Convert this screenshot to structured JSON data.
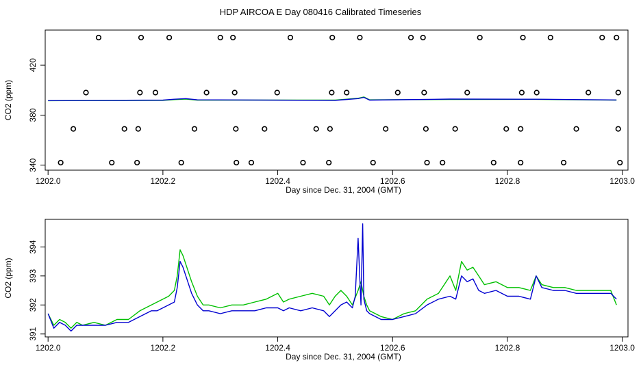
{
  "title": "HDP AIRCOA E  Day 080416  Calibrated Timeseries",
  "colors": {
    "series_a": "#00c000",
    "series_b": "#0000d0",
    "markers": "#000000",
    "frame": "#000000"
  },
  "chart_data": [
    {
      "type": "scatter+line",
      "xlabel": "Day since Dec. 31, 2004 (GMT)",
      "ylabel": "CO2 (ppm)",
      "xlim": [
        1201.995,
        1203.01
      ],
      "ylim": [
        336,
        448
      ],
      "xticks": [
        1202.0,
        1202.2,
        1202.4,
        1202.6,
        1202.8,
        1203.0
      ],
      "xtick_labels": [
        "1202.0",
        "1202.2",
        "1202.4",
        "1202.6",
        "1202.8",
        "1203.0"
      ],
      "yticks": [
        340,
        380,
        420
      ],
      "ytick_labels": [
        "340",
        "380",
        "420"
      ],
      "grid": false,
      "markers": [
        {
          "x": 1202.088,
          "y": 442
        },
        {
          "x": 1202.162,
          "y": 442
        },
        {
          "x": 1202.211,
          "y": 442
        },
        {
          "x": 1202.3,
          "y": 442
        },
        {
          "x": 1202.322,
          "y": 442
        },
        {
          "x": 1202.422,
          "y": 442
        },
        {
          "x": 1202.495,
          "y": 442
        },
        {
          "x": 1202.543,
          "y": 442
        },
        {
          "x": 1202.632,
          "y": 442
        },
        {
          "x": 1202.653,
          "y": 442
        },
        {
          "x": 1202.752,
          "y": 442
        },
        {
          "x": 1202.827,
          "y": 442
        },
        {
          "x": 1202.875,
          "y": 442
        },
        {
          "x": 1202.965,
          "y": 442
        },
        {
          "x": 1202.99,
          "y": 442
        },
        {
          "x": 1202.066,
          "y": 398
        },
        {
          "x": 1202.16,
          "y": 398
        },
        {
          "x": 1202.187,
          "y": 398
        },
        {
          "x": 1202.276,
          "y": 398
        },
        {
          "x": 1202.325,
          "y": 398
        },
        {
          "x": 1202.399,
          "y": 398
        },
        {
          "x": 1202.494,
          "y": 398
        },
        {
          "x": 1202.52,
          "y": 398
        },
        {
          "x": 1202.609,
          "y": 398
        },
        {
          "x": 1202.655,
          "y": 398
        },
        {
          "x": 1202.73,
          "y": 398
        },
        {
          "x": 1202.825,
          "y": 398
        },
        {
          "x": 1202.851,
          "y": 398
        },
        {
          "x": 1202.941,
          "y": 398
        },
        {
          "x": 1202.993,
          "y": 398
        },
        {
          "x": 1202.044,
          "y": 369
        },
        {
          "x": 1202.133,
          "y": 369
        },
        {
          "x": 1202.157,
          "y": 369
        },
        {
          "x": 1202.255,
          "y": 369
        },
        {
          "x": 1202.327,
          "y": 369
        },
        {
          "x": 1202.377,
          "y": 369
        },
        {
          "x": 1202.467,
          "y": 369
        },
        {
          "x": 1202.491,
          "y": 369
        },
        {
          "x": 1202.588,
          "y": 369
        },
        {
          "x": 1202.658,
          "y": 369
        },
        {
          "x": 1202.709,
          "y": 369
        },
        {
          "x": 1202.798,
          "y": 369
        },
        {
          "x": 1202.823,
          "y": 369
        },
        {
          "x": 1202.92,
          "y": 369
        },
        {
          "x": 1202.993,
          "y": 369
        },
        {
          "x": 1202.022,
          "y": 342
        },
        {
          "x": 1202.111,
          "y": 342
        },
        {
          "x": 1202.155,
          "y": 342
        },
        {
          "x": 1202.232,
          "y": 342
        },
        {
          "x": 1202.328,
          "y": 342
        },
        {
          "x": 1202.354,
          "y": 342
        },
        {
          "x": 1202.444,
          "y": 342
        },
        {
          "x": 1202.489,
          "y": 342
        },
        {
          "x": 1202.566,
          "y": 342
        },
        {
          "x": 1202.66,
          "y": 342
        },
        {
          "x": 1202.687,
          "y": 342
        },
        {
          "x": 1202.776,
          "y": 342
        },
        {
          "x": 1202.823,
          "y": 342
        },
        {
          "x": 1202.898,
          "y": 342
        },
        {
          "x": 1202.996,
          "y": 342
        }
      ],
      "series": [
        {
          "x": [
            1202.0,
            1202.2,
            1202.22,
            1202.24,
            1202.26,
            1202.5,
            1202.54,
            1202.55,
            1202.56,
            1202.7,
            1202.85,
            1202.99
          ],
          "y": [
            391.5,
            391.8,
            392.4,
            392.8,
            392.0,
            392.0,
            393.5,
            394.5,
            392.2,
            392.5,
            392.6,
            392.0
          ]
        },
        {
          "x": [
            1202.0,
            1202.2,
            1202.22,
            1202.24,
            1202.26,
            1202.5,
            1202.54,
            1202.55,
            1202.56,
            1202.7,
            1202.85,
            1202.99
          ],
          "y": [
            391.6,
            392.0,
            392.7,
            393.2,
            392.2,
            391.8,
            393.2,
            394.2,
            392.0,
            392.8,
            392.7,
            392.1
          ]
        }
      ]
    },
    {
      "type": "line",
      "xlabel": "Day since Dec. 31, 2004 (GMT)",
      "ylabel": "CO2 (ppm)",
      "xlim": [
        1201.995,
        1203.01
      ],
      "ylim": [
        390.9,
        394.95
      ],
      "xticks": [
        1202.0,
        1202.2,
        1202.4,
        1202.6,
        1202.8,
        1203.0
      ],
      "xtick_labels": [
        "1202.0",
        "1202.2",
        "1202.4",
        "1202.6",
        "1202.8",
        "1203.0"
      ],
      "yticks": [
        391,
        392,
        393,
        394
      ],
      "ytick_labels": [
        "391",
        "392",
        "393",
        "394"
      ],
      "grid": false,
      "series": [
        {
          "x": [
            1202.0,
            1202.01,
            1202.02,
            1202.03,
            1202.04,
            1202.05,
            1202.06,
            1202.08,
            1202.1,
            1202.12,
            1202.14,
            1202.16,
            1202.18,
            1202.19,
            1202.2,
            1202.21,
            1202.22,
            1202.225,
            1202.23,
            1202.235,
            1202.24,
            1202.25,
            1202.26,
            1202.27,
            1202.28,
            1202.3,
            1202.32,
            1202.34,
            1202.36,
            1202.38,
            1202.4,
            1202.41,
            1202.42,
            1202.44,
            1202.46,
            1202.48,
            1202.49,
            1202.5,
            1202.51,
            1202.52,
            1202.53,
            1202.54,
            1202.545,
            1202.55,
            1202.555,
            1202.56,
            1202.58,
            1202.6,
            1202.62,
            1202.64,
            1202.66,
            1202.68,
            1202.7,
            1202.71,
            1202.72,
            1202.73,
            1202.74,
            1202.75,
            1202.76,
            1202.78,
            1202.8,
            1202.82,
            1202.84,
            1202.85,
            1202.86,
            1202.88,
            1202.9,
            1202.92,
            1202.94,
            1202.96,
            1202.98,
            1202.99
          ],
          "y": [
            391.7,
            391.3,
            391.5,
            391.4,
            391.2,
            391.4,
            391.3,
            391.4,
            391.3,
            391.5,
            391.5,
            391.8,
            392.0,
            392.1,
            392.2,
            392.3,
            392.5,
            393.0,
            393.9,
            393.7,
            393.4,
            392.8,
            392.3,
            392.0,
            392.0,
            391.9,
            392.0,
            392.0,
            392.1,
            392.2,
            392.4,
            392.1,
            392.2,
            392.3,
            392.4,
            392.3,
            392.0,
            392.3,
            392.5,
            392.3,
            392.0,
            392.5,
            392.8,
            392.3,
            392.0,
            391.8,
            391.6,
            391.5,
            391.7,
            391.8,
            392.2,
            392.4,
            393.0,
            392.5,
            393.5,
            393.2,
            393.3,
            393.0,
            392.7,
            392.8,
            392.6,
            392.6,
            392.5,
            393.0,
            392.7,
            392.6,
            392.6,
            392.5,
            392.5,
            392.5,
            392.5,
            392.0
          ]
        },
        {
          "x": [
            1202.0,
            1202.01,
            1202.02,
            1202.03,
            1202.04,
            1202.05,
            1202.06,
            1202.08,
            1202.1,
            1202.12,
            1202.14,
            1202.16,
            1202.18,
            1202.19,
            1202.2,
            1202.21,
            1202.22,
            1202.225,
            1202.23,
            1202.235,
            1202.24,
            1202.25,
            1202.26,
            1202.27,
            1202.28,
            1202.3,
            1202.32,
            1202.34,
            1202.36,
            1202.38,
            1202.4,
            1202.41,
            1202.42,
            1202.44,
            1202.46,
            1202.48,
            1202.49,
            1202.5,
            1202.51,
            1202.52,
            1202.53,
            1202.535,
            1202.54,
            1202.545,
            1202.548,
            1202.55,
            1202.555,
            1202.56,
            1202.58,
            1202.6,
            1202.62,
            1202.64,
            1202.66,
            1202.68,
            1202.7,
            1202.71,
            1202.72,
            1202.73,
            1202.74,
            1202.75,
            1202.76,
            1202.78,
            1202.8,
            1202.82,
            1202.84,
            1202.85,
            1202.86,
            1202.88,
            1202.9,
            1202.92,
            1202.94,
            1202.96,
            1202.98,
            1202.99
          ],
          "y": [
            391.7,
            391.2,
            391.4,
            391.3,
            391.1,
            391.3,
            391.3,
            391.3,
            391.3,
            391.4,
            391.4,
            391.6,
            391.8,
            391.8,
            391.9,
            392.0,
            392.1,
            392.6,
            393.5,
            393.3,
            393.0,
            392.4,
            392.0,
            391.8,
            391.8,
            391.7,
            391.8,
            391.8,
            391.8,
            391.9,
            391.9,
            391.8,
            391.9,
            391.8,
            391.9,
            391.8,
            391.6,
            391.8,
            392.0,
            392.1,
            391.9,
            392.3,
            394.3,
            392.0,
            394.8,
            392.2,
            391.8,
            391.7,
            391.5,
            391.5,
            391.6,
            391.7,
            392.0,
            392.2,
            392.3,
            392.2,
            393.0,
            392.8,
            392.9,
            392.5,
            392.4,
            392.5,
            392.3,
            392.3,
            392.2,
            393.0,
            392.6,
            392.5,
            392.5,
            392.4,
            392.4,
            392.4,
            392.4,
            392.2
          ]
        }
      ]
    }
  ]
}
